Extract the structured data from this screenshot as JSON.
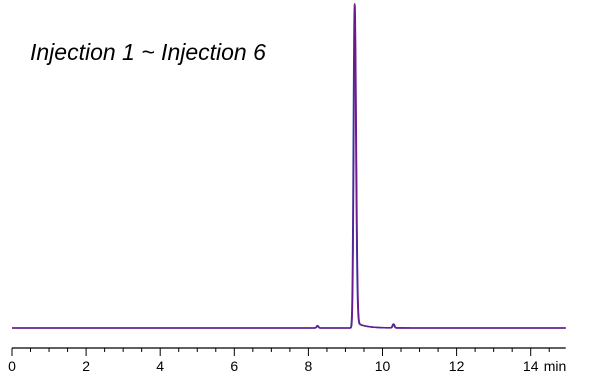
{
  "chart_data": {
    "type": "line",
    "title": "",
    "xlabel": "",
    "ylabel": "",
    "x_unit": "min",
    "xlim": [
      0,
      15
    ],
    "ylim": [
      0,
      1
    ],
    "x_ticks": [
      0,
      2,
      4,
      6,
      8,
      10,
      12,
      14
    ],
    "x_tick_labels": [
      "0",
      "2",
      "4",
      "6",
      "8",
      "10",
      "12",
      "14"
    ],
    "grid": false,
    "legend": "none",
    "annotations": [
      "Injection 1 ~ Injection 6"
    ],
    "peaks": [
      {
        "retention_time": 8.25,
        "height": 0.007
      },
      {
        "retention_time": 9.25,
        "height": 1.0
      },
      {
        "retention_time": 10.3,
        "height": 0.012
      }
    ],
    "series_colors": [
      "#1a3fb0",
      "#8a2090",
      "#6a1a8a"
    ]
  }
}
